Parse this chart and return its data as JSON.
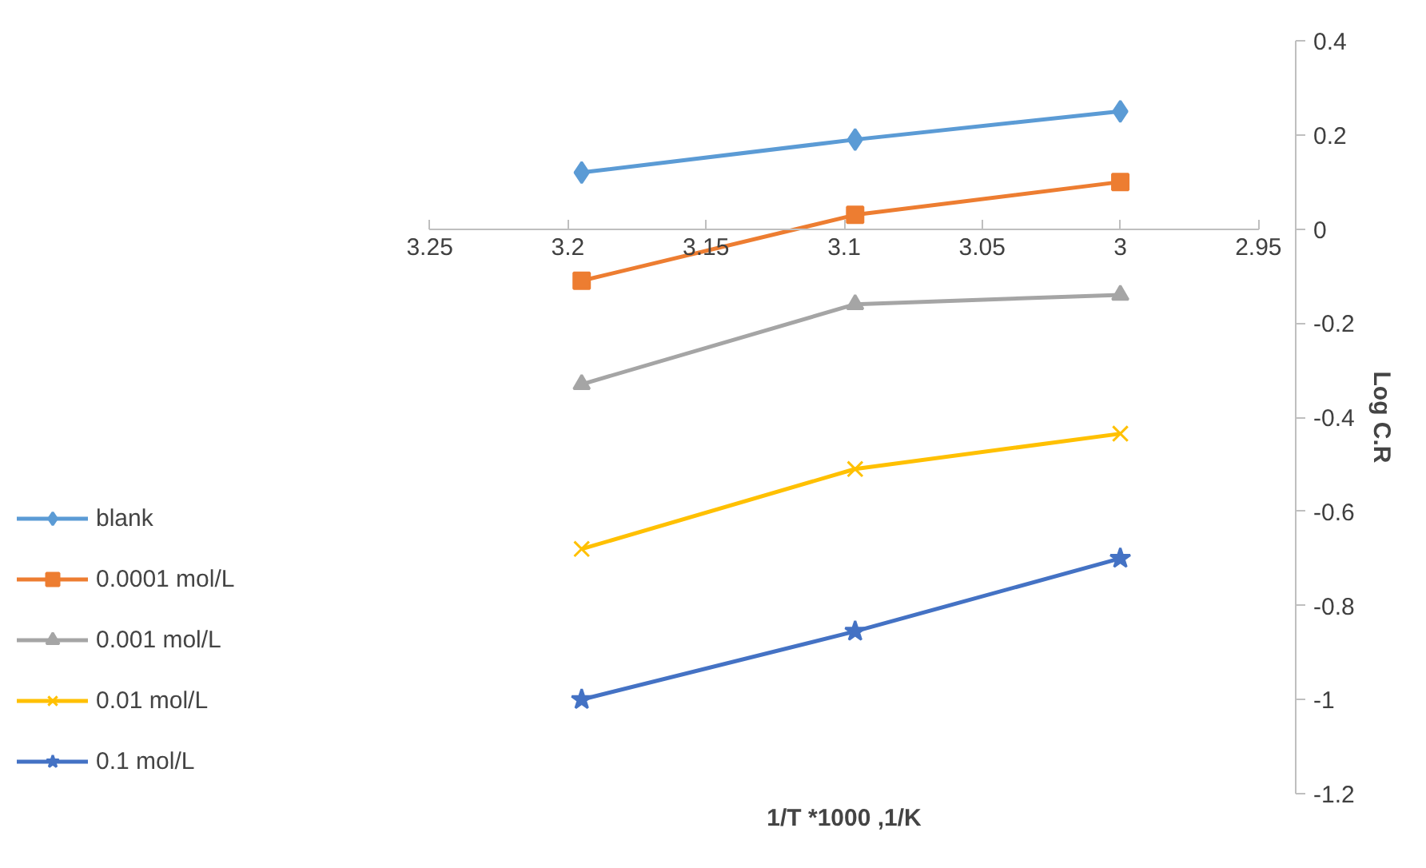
{
  "chart_data": {
    "type": "line",
    "xlabel": "1/T *1000 ,1/K",
    "ylabel": "Log C.R",
    "x": [
      3.195,
      3.096,
      3.0
    ],
    "xlim": [
      3.25,
      2.95
    ],
    "xticks": [
      {
        "value": 3.25,
        "label": "3.25"
      },
      {
        "value": 3.2,
        "label": "3.2"
      },
      {
        "value": 3.15,
        "label": "3.15"
      },
      {
        "value": 3.1,
        "label": "3.1"
      },
      {
        "value": 3.05,
        "label": "3.05"
      },
      3,
      {
        "value": 2.95,
        "label": "2.95"
      }
    ],
    "ylim": [
      -1.2,
      0.4
    ],
    "yticks": [
      {
        "value": -1.2,
        "label": "-1.2"
      },
      -1,
      {
        "value": -0.8,
        "label": "-0.8"
      },
      {
        "value": -0.6,
        "label": "-0.6"
      },
      {
        "value": -0.4,
        "label": "-0.4"
      },
      {
        "value": -0.2,
        "label": "-0.2"
      },
      0,
      {
        "value": 0.2,
        "label": "0.2"
      },
      {
        "value": 0.4,
        "label": "0.4"
      }
    ],
    "grid": false,
    "legend": "left",
    "line_style": "solid",
    "series": [
      {
        "name": "blank",
        "color": "#5b9bd5",
        "marker": "diamond",
        "values": [
          0.12,
          0.19,
          0.25
        ]
      },
      {
        "name": "0.0001 mol/L",
        "color": "#ed7d31",
        "marker": "square",
        "values": [
          -0.11,
          0.03,
          0.1
        ]
      },
      {
        "name": "0.001 mol/L",
        "color": "#a5a5a5",
        "marker": "triangle",
        "values": [
          -0.33,
          -0.16,
          -0.14
        ]
      },
      {
        "name": "0.01 mol/L",
        "color": "#ffc000",
        "marker": "cross",
        "values": [
          -0.68,
          -0.51,
          -0.435
        ]
      },
      {
        "name": "0.1 mol/L",
        "color": "#4472c4",
        "marker": "star",
        "values": [
          -1.0,
          -0.855,
          -0.7
        ]
      }
    ]
  }
}
